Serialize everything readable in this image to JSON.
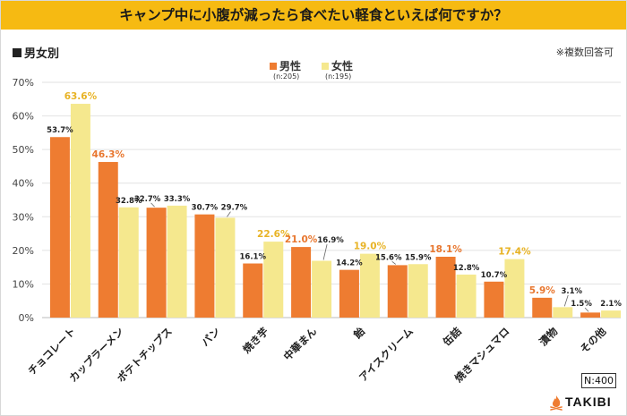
{
  "title": "キャンプ中に小腹が減ったら食べたい軽食といえば何ですか？",
  "breakdown_label": "男女別",
  "note": "※複数回答可",
  "total_label": "N:400",
  "brand": {
    "name": "TAKIBI",
    "icon": "flame-icon"
  },
  "colors": {
    "male": "#ee7c31",
    "female": "#f5e88e",
    "male_highlight": "#e8772f",
    "female_highlight": "#e8b325",
    "label": "#222222",
    "accent": "#f6ba12"
  },
  "chart_data": {
    "type": "bar",
    "title": "キャンプ中に小腹が減ったら食べたい軽食といえば何ですか？",
    "xlabel": "",
    "ylabel": "",
    "ylim": [
      0,
      70
    ],
    "yticks": [
      "0%",
      "10%",
      "20%",
      "30%",
      "40%",
      "50%",
      "60%",
      "70%"
    ],
    "grid": true,
    "legend": "top-center",
    "categories": [
      "チョコレート",
      "カップラーメン",
      "ポテトチップス",
      "パン",
      "焼き芋",
      "中華まん",
      "飴",
      "アイスクリーム",
      "缶詰",
      "焼きマシュマロ",
      "漬物",
      "その他"
    ],
    "series": [
      {
        "name": "男性",
        "n": "(n:205)",
        "values": [
          53.7,
          46.3,
          32.7,
          30.7,
          16.1,
          21.0,
          14.2,
          15.6,
          18.1,
          10.7,
          5.9,
          1.5
        ],
        "labels": [
          "53.7%",
          "46.3%",
          "32.7%",
          "30.7%",
          "16.1%",
          "21.0%",
          "14.2%",
          "15.6%",
          "18.1%",
          "10.7%",
          "5.9%",
          "1.5%"
        ],
        "highlight": [
          false,
          true,
          false,
          false,
          false,
          true,
          false,
          false,
          true,
          false,
          true,
          false
        ]
      },
      {
        "name": "女性",
        "n": "(n:195)",
        "values": [
          63.6,
          32.8,
          33.3,
          29.7,
          22.6,
          16.9,
          19.0,
          15.9,
          12.8,
          17.4,
          3.1,
          2.1
        ],
        "labels": [
          "63.6%",
          "32.8%",
          "33.3%",
          "29.7%",
          "22.6%",
          "16.9%",
          "19.0%",
          "15.9%",
          "12.8%",
          "17.4%",
          "3.1%",
          "2.1%"
        ],
        "highlight": [
          true,
          false,
          false,
          false,
          true,
          false,
          true,
          false,
          false,
          true,
          false,
          false
        ]
      }
    ]
  }
}
